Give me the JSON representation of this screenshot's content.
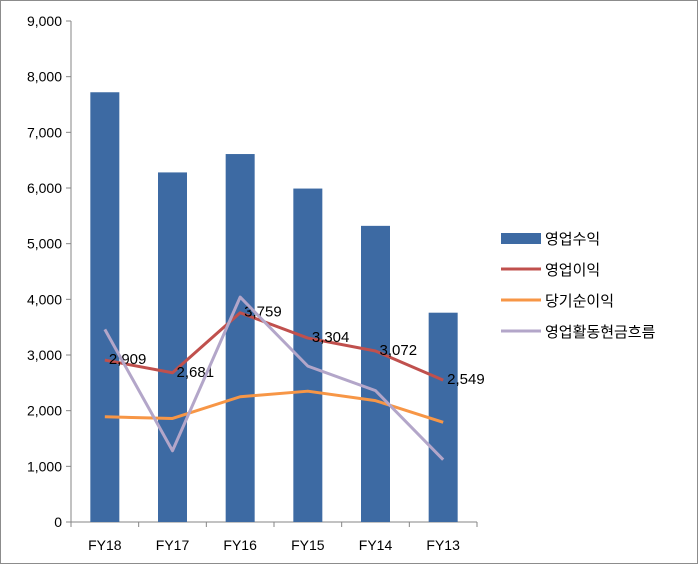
{
  "chart_data": {
    "type": "bar",
    "title": "",
    "xlabel": "",
    "ylabel": "",
    "categories": [
      "FY18",
      "FY17",
      "FY16",
      "FY15",
      "FY14",
      "FY13"
    ],
    "ylim": [
      0,
      9000
    ],
    "yticks": [
      "0",
      "1,000",
      "2,000",
      "3,000",
      "4,000",
      "5,000",
      "6,000",
      "7,000",
      "8,000",
      "9,000"
    ],
    "grid": false,
    "legend_position": "right",
    "series": [
      {
        "name": "영업수익",
        "type": "bar",
        "color": "#3d6aa3",
        "values": [
          7720,
          6280,
          6610,
          5990,
          5320,
          3760
        ]
      },
      {
        "name": "영업이익",
        "type": "line",
        "color": "#c0504d",
        "values": [
          2909,
          2681,
          3759,
          3304,
          3072,
          2549
        ],
        "labels": [
          "2,909",
          "2,681",
          "3,759",
          "3,304",
          "3,072",
          "2,549"
        ]
      },
      {
        "name": "당기순이익",
        "type": "line",
        "color": "#f79646",
        "values": [
          1890,
          1860,
          2250,
          2350,
          2180,
          1790
        ]
      },
      {
        "name": "영업활동현금흐름",
        "type": "line",
        "color": "#b3a6c9",
        "values": [
          3460,
          1280,
          4040,
          2800,
          2360,
          1120
        ]
      }
    ]
  }
}
